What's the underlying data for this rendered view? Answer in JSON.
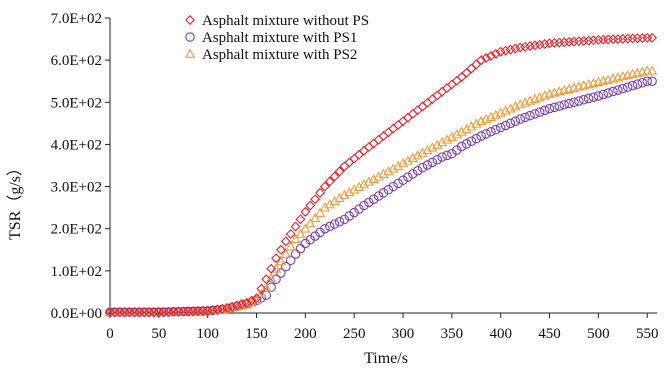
{
  "chart_data": {
    "type": "scatter",
    "title": "",
    "xlabel": "Time/s",
    "ylabel": "TSR（g/s）",
    "xlim": [
      0,
      560
    ],
    "ylim": [
      0,
      700
    ],
    "x_ticks": [
      0,
      50,
      100,
      150,
      200,
      250,
      300,
      350,
      400,
      450,
      500,
      550
    ],
    "x_tick_labels": [
      "0",
      "50",
      "100",
      "150",
      "200",
      "250",
      "300",
      "350",
      "400",
      "450",
      "500",
      "550"
    ],
    "y_ticks": [
      0,
      100,
      200,
      300,
      400,
      500,
      600,
      700
    ],
    "y_tick_labels": [
      "0.0E+00",
      "1.0E+02",
      "2.0E+02",
      "3.0E+02",
      "4.0E+02",
      "5.0E+02",
      "6.0E+02",
      "7.0E+02"
    ],
    "grid": false,
    "legend_position": "top-left",
    "series": [
      {
        "name": "Asphalt mixture without PS",
        "marker": "diamond",
        "color": "#e8202a",
        "x": [
          0,
          50,
          100,
          120,
          140,
          150,
          160,
          170,
          180,
          190,
          200,
          220,
          240,
          260,
          280,
          300,
          320,
          340,
          360,
          380,
          400,
          420,
          450,
          500,
          550
        ],
        "y": [
          2,
          2,
          5,
          12,
          24,
          35,
          80,
          130,
          170,
          205,
          240,
          300,
          348,
          385,
          420,
          455,
          490,
          525,
          560,
          600,
          620,
          630,
          640,
          648,
          653
        ]
      },
      {
        "name": "Asphalt mixture with PS1",
        "marker": "circle",
        "color": "#7a3fb0",
        "x": [
          0,
          50,
          100,
          120,
          140,
          150,
          160,
          170,
          180,
          190,
          200,
          220,
          240,
          260,
          280,
          300,
          320,
          340,
          350,
          360,
          380,
          400,
          420,
          450,
          500,
          550
        ],
        "y": [
          2,
          2,
          5,
          10,
          22,
          30,
          42,
          80,
          110,
          140,
          165,
          200,
          222,
          255,
          285,
          315,
          345,
          370,
          378,
          395,
          420,
          440,
          460,
          485,
          515,
          550
        ]
      },
      {
        "name": "Asphalt mixture with PS2",
        "marker": "triangle",
        "color": "#f29a3a",
        "x": [
          0,
          50,
          100,
          120,
          140,
          150,
          160,
          170,
          180,
          190,
          200,
          220,
          240,
          260,
          280,
          300,
          320,
          340,
          360,
          380,
          400,
          420,
          450,
          500,
          550
        ],
        "y": [
          2,
          2,
          5,
          10,
          20,
          30,
          60,
          105,
          140,
          175,
          200,
          250,
          280,
          305,
          330,
          355,
          380,
          405,
          430,
          455,
          475,
          495,
          520,
          548,
          575
        ]
      }
    ]
  }
}
